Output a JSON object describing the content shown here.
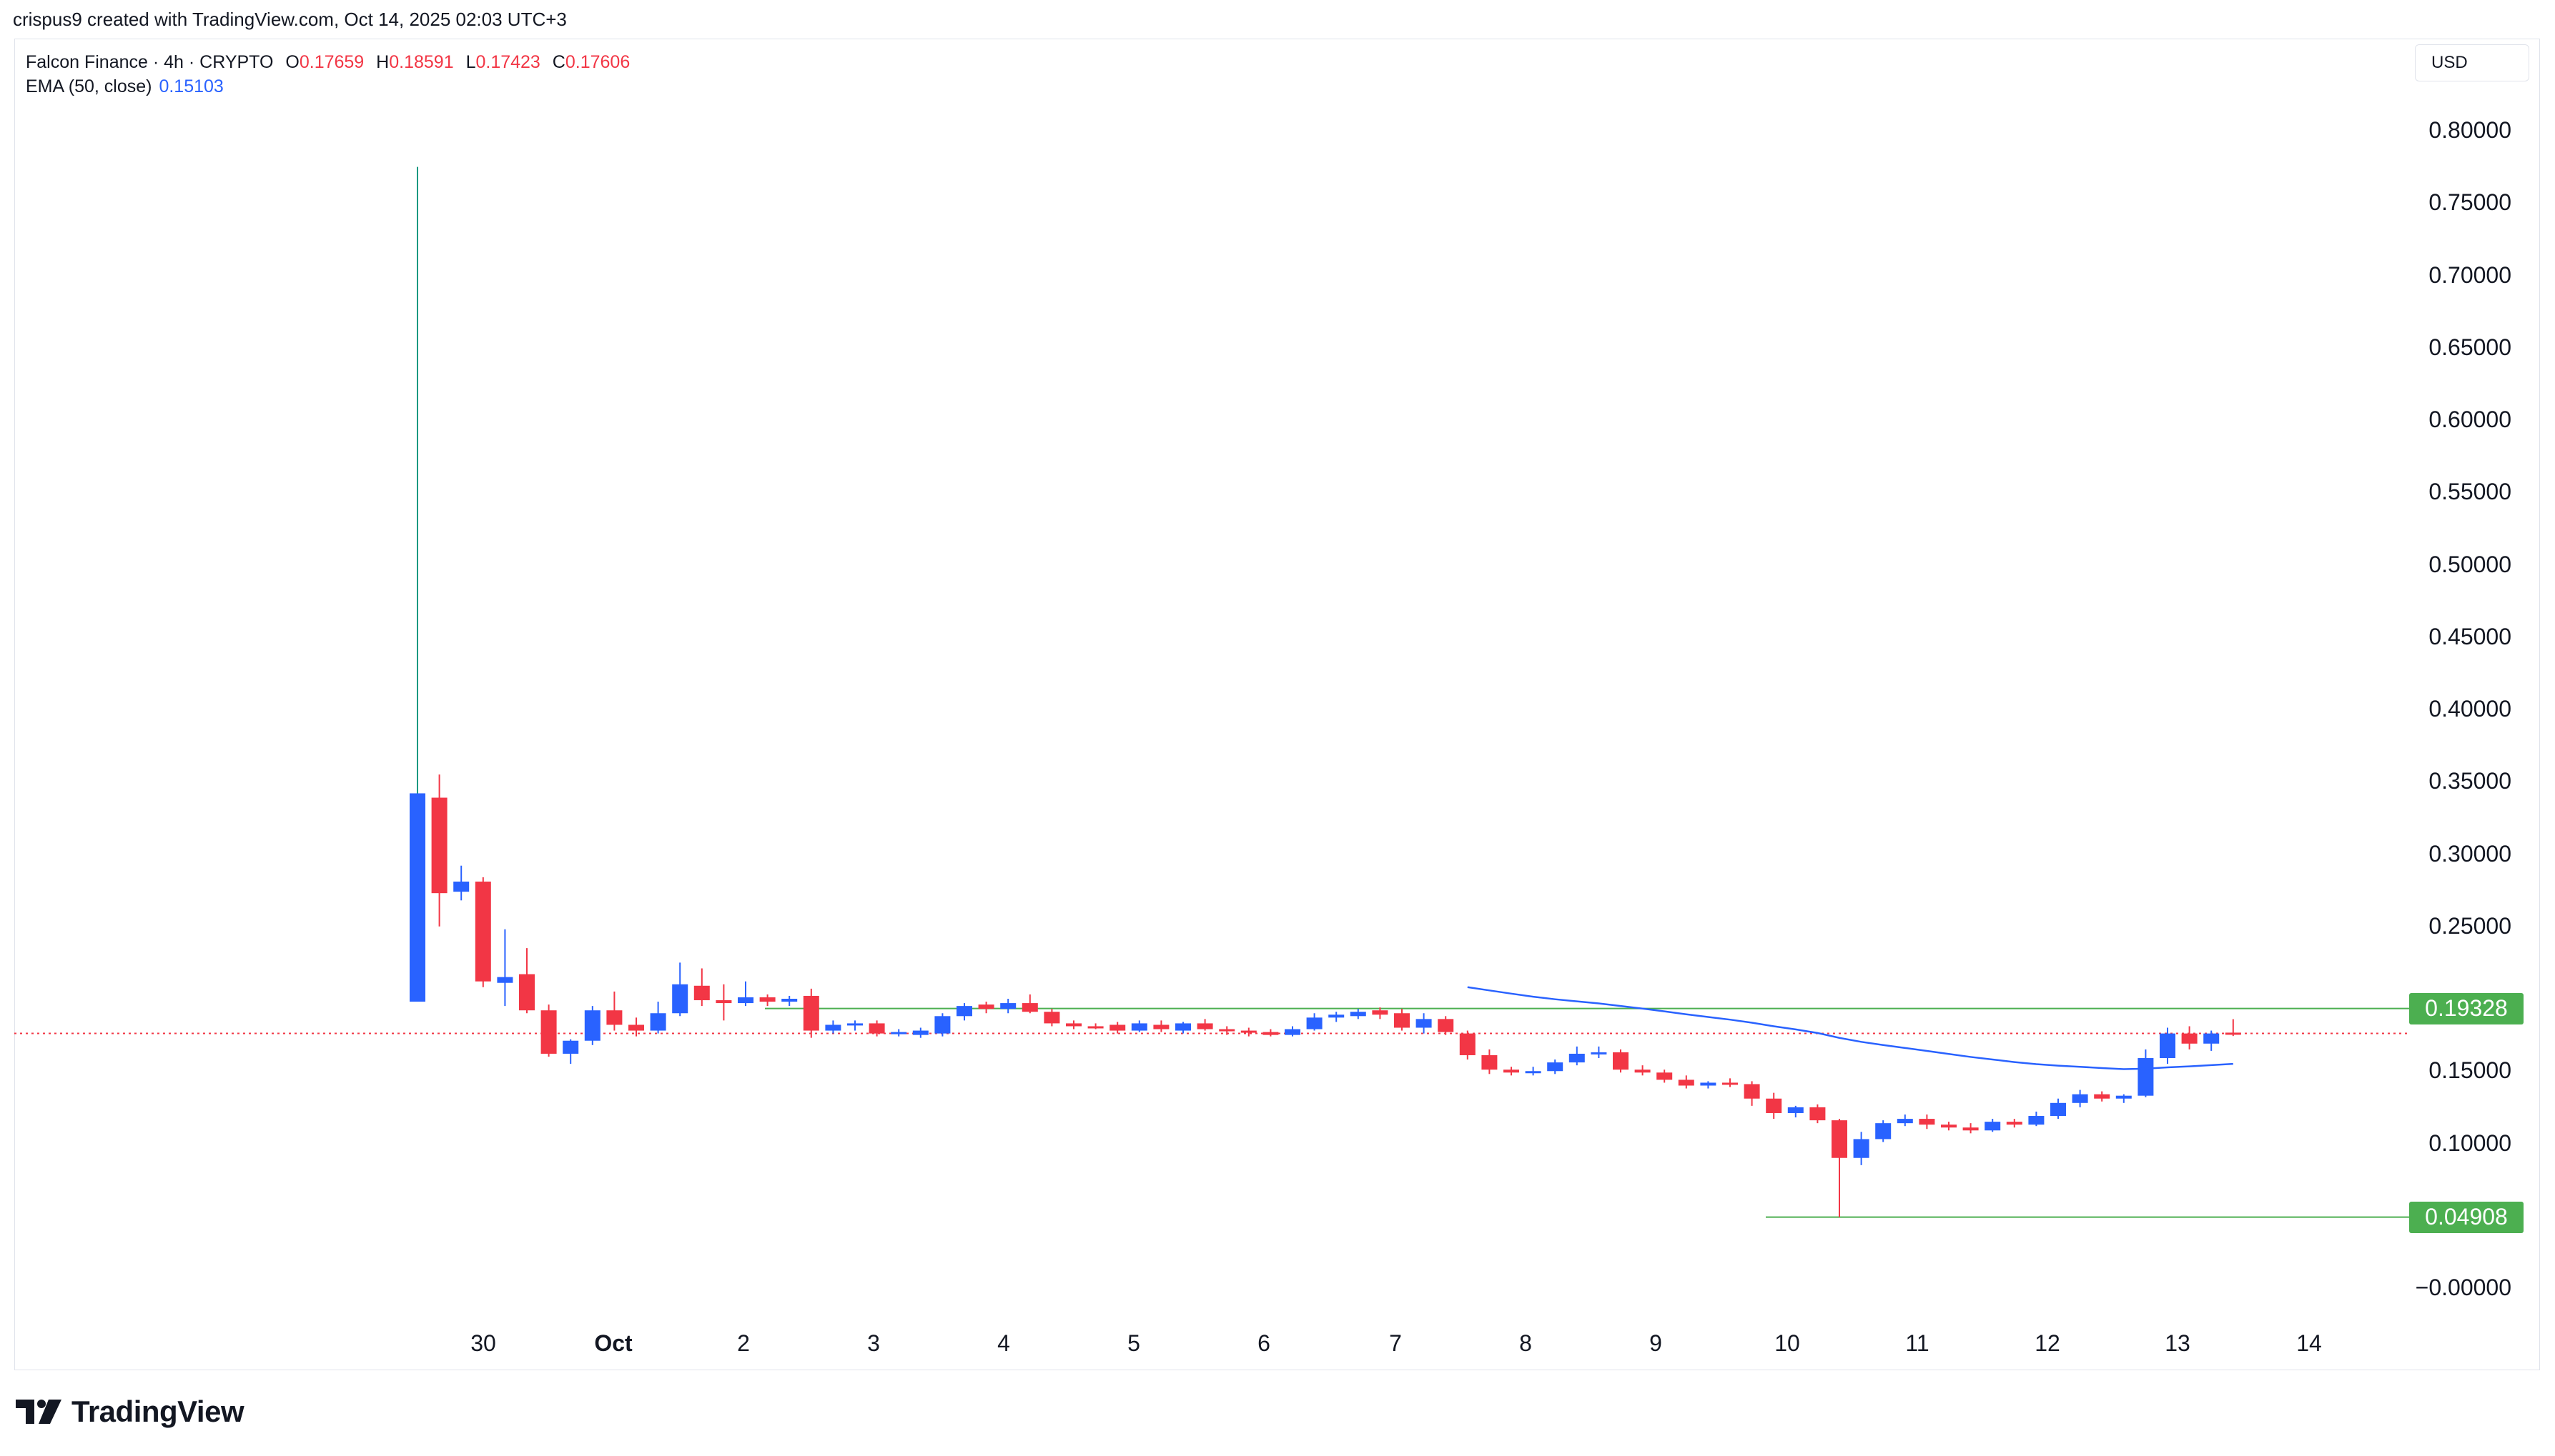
{
  "header": {
    "created_by": "crispus9 created with TradingView.com, Oct 14, 2025 02:03 UTC+3"
  },
  "legend": {
    "symbol": "Falcon Finance · 4h · CRYPTO",
    "open_label": "O",
    "open": "0.17659",
    "high_label": "H",
    "high": "0.18591",
    "low_label": "L",
    "low": "0.17423",
    "close_label": "C",
    "close": "0.17606",
    "ema_name": "EMA (50, close)",
    "ema_value": "0.15103"
  },
  "currency": "USD",
  "price_tags": {
    "upper": "0.19328",
    "lower": "0.04908"
  },
  "brand": {
    "name": "TradingView"
  },
  "colors": {
    "up": "#2962ff",
    "down": "#f23645",
    "ema": "#2962ff",
    "level_line": "#4caf50",
    "spike_wick": "#089981",
    "current_price": "#f23645"
  },
  "chart_data": {
    "type": "candlestick",
    "timeframe": "4h",
    "y_axis_ticks": [
      "0.80000",
      "0.75000",
      "0.70000",
      "0.65000",
      "0.60000",
      "0.55000",
      "0.50000",
      "0.45000",
      "0.40000",
      "0.35000",
      "0.30000",
      "0.25000",
      "0.15000",
      "0.10000",
      "−0.00000"
    ],
    "ylim": [
      0.0,
      0.8
    ],
    "x_axis_ticks": [
      "30",
      "Oct",
      "2",
      "3",
      "4",
      "5",
      "6",
      "7",
      "8",
      "9",
      "10",
      "11",
      "12",
      "13",
      "14"
    ],
    "horizontal_levels": [
      0.19328,
      0.04908
    ],
    "current_price": 0.17606,
    "candles": [
      {
        "o": 0.198,
        "h": 0.775,
        "l": 0.198,
        "c": 0.342
      },
      {
        "o": 0.339,
        "h": 0.355,
        "l": 0.25,
        "c": 0.273
      },
      {
        "o": 0.274,
        "h": 0.292,
        "l": 0.268,
        "c": 0.281
      },
      {
        "o": 0.281,
        "h": 0.284,
        "l": 0.208,
        "c": 0.212
      },
      {
        "o": 0.211,
        "h": 0.248,
        "l": 0.195,
        "c": 0.215
      },
      {
        "o": 0.217,
        "h": 0.235,
        "l": 0.19,
        "c": 0.192
      },
      {
        "o": 0.192,
        "h": 0.196,
        "l": 0.16,
        "c": 0.162
      },
      {
        "o": 0.162,
        "h": 0.172,
        "l": 0.155,
        "c": 0.171
      },
      {
        "o": 0.171,
        "h": 0.195,
        "l": 0.168,
        "c": 0.192
      },
      {
        "o": 0.192,
        "h": 0.205,
        "l": 0.178,
        "c": 0.182
      },
      {
        "o": 0.182,
        "h": 0.187,
        "l": 0.174,
        "c": 0.178
      },
      {
        "o": 0.178,
        "h": 0.198,
        "l": 0.176,
        "c": 0.19
      },
      {
        "o": 0.19,
        "h": 0.225,
        "l": 0.188,
        "c": 0.21
      },
      {
        "o": 0.209,
        "h": 0.221,
        "l": 0.195,
        "c": 0.199
      },
      {
        "o": 0.199,
        "h": 0.21,
        "l": 0.185,
        "c": 0.197
      },
      {
        "o": 0.197,
        "h": 0.212,
        "l": 0.195,
        "c": 0.201
      },
      {
        "o": 0.201,
        "h": 0.203,
        "l": 0.195,
        "c": 0.198
      },
      {
        "o": 0.198,
        "h": 0.202,
        "l": 0.195,
        "c": 0.2
      },
      {
        "o": 0.202,
        "h": 0.207,
        "l": 0.173,
        "c": 0.178
      },
      {
        "o": 0.178,
        "h": 0.185,
        "l": 0.176,
        "c": 0.182
      },
      {
        "o": 0.182,
        "h": 0.185,
        "l": 0.178,
        "c": 0.183
      },
      {
        "o": 0.183,
        "h": 0.185,
        "l": 0.174,
        "c": 0.176
      },
      {
        "o": 0.176,
        "h": 0.179,
        "l": 0.174,
        "c": 0.177
      },
      {
        "o": 0.175,
        "h": 0.18,
        "l": 0.173,
        "c": 0.178
      },
      {
        "o": 0.176,
        "h": 0.19,
        "l": 0.174,
        "c": 0.188
      },
      {
        "o": 0.188,
        "h": 0.197,
        "l": 0.185,
        "c": 0.195
      },
      {
        "o": 0.196,
        "h": 0.198,
        "l": 0.19,
        "c": 0.193
      },
      {
        "o": 0.193,
        "h": 0.2,
        "l": 0.19,
        "c": 0.197
      },
      {
        "o": 0.197,
        "h": 0.203,
        "l": 0.19,
        "c": 0.191
      },
      {
        "o": 0.191,
        "h": 0.193,
        "l": 0.181,
        "c": 0.183
      },
      {
        "o": 0.183,
        "h": 0.185,
        "l": 0.179,
        "c": 0.181
      },
      {
        "o": 0.181,
        "h": 0.183,
        "l": 0.179,
        "c": 0.18
      },
      {
        "o": 0.182,
        "h": 0.184,
        "l": 0.176,
        "c": 0.178
      },
      {
        "o": 0.178,
        "h": 0.185,
        "l": 0.177,
        "c": 0.183
      },
      {
        "o": 0.182,
        "h": 0.185,
        "l": 0.177,
        "c": 0.179
      },
      {
        "o": 0.178,
        "h": 0.184,
        "l": 0.176,
        "c": 0.183
      },
      {
        "o": 0.183,
        "h": 0.186,
        "l": 0.178,
        "c": 0.179
      },
      {
        "o": 0.179,
        "h": 0.181,
        "l": 0.175,
        "c": 0.178
      },
      {
        "o": 0.178,
        "h": 0.18,
        "l": 0.174,
        "c": 0.177
      },
      {
        "o": 0.177,
        "h": 0.179,
        "l": 0.174,
        "c": 0.175
      },
      {
        "o": 0.175,
        "h": 0.181,
        "l": 0.174,
        "c": 0.179
      },
      {
        "o": 0.179,
        "h": 0.19,
        "l": 0.178,
        "c": 0.187
      },
      {
        "o": 0.187,
        "h": 0.191,
        "l": 0.184,
        "c": 0.189
      },
      {
        "o": 0.188,
        "h": 0.193,
        "l": 0.186,
        "c": 0.191
      },
      {
        "o": 0.192,
        "h": 0.194,
        "l": 0.186,
        "c": 0.189
      },
      {
        "o": 0.19,
        "h": 0.193,
        "l": 0.178,
        "c": 0.18
      },
      {
        "o": 0.18,
        "h": 0.19,
        "l": 0.176,
        "c": 0.186
      },
      {
        "o": 0.186,
        "h": 0.188,
        "l": 0.175,
        "c": 0.177
      },
      {
        "o": 0.176,
        "h": 0.178,
        "l": 0.158,
        "c": 0.161
      },
      {
        "o": 0.161,
        "h": 0.165,
        "l": 0.148,
        "c": 0.151
      },
      {
        "o": 0.151,
        "h": 0.153,
        "l": 0.147,
        "c": 0.149
      },
      {
        "o": 0.149,
        "h": 0.153,
        "l": 0.147,
        "c": 0.15
      },
      {
        "o": 0.15,
        "h": 0.158,
        "l": 0.148,
        "c": 0.156
      },
      {
        "o": 0.156,
        "h": 0.167,
        "l": 0.154,
        "c": 0.162
      },
      {
        "o": 0.162,
        "h": 0.167,
        "l": 0.159,
        "c": 0.163
      },
      {
        "o": 0.163,
        "h": 0.165,
        "l": 0.149,
        "c": 0.151
      },
      {
        "o": 0.151,
        "h": 0.154,
        "l": 0.147,
        "c": 0.149
      },
      {
        "o": 0.149,
        "h": 0.151,
        "l": 0.142,
        "c": 0.144
      },
      {
        "o": 0.144,
        "h": 0.147,
        "l": 0.138,
        "c": 0.14
      },
      {
        "o": 0.14,
        "h": 0.143,
        "l": 0.138,
        "c": 0.142
      },
      {
        "o": 0.142,
        "h": 0.145,
        "l": 0.139,
        "c": 0.141
      },
      {
        "o": 0.141,
        "h": 0.143,
        "l": 0.126,
        "c": 0.131
      },
      {
        "o": 0.131,
        "h": 0.135,
        "l": 0.117,
        "c": 0.121
      },
      {
        "o": 0.121,
        "h": 0.126,
        "l": 0.118,
        "c": 0.125
      },
      {
        "o": 0.125,
        "h": 0.127,
        "l": 0.114,
        "c": 0.116
      },
      {
        "o": 0.116,
        "h": 0.117,
        "l": 0.049,
        "c": 0.09
      },
      {
        "o": 0.09,
        "h": 0.108,
        "l": 0.085,
        "c": 0.103
      },
      {
        "o": 0.103,
        "h": 0.116,
        "l": 0.101,
        "c": 0.114
      },
      {
        "o": 0.114,
        "h": 0.12,
        "l": 0.112,
        "c": 0.117
      },
      {
        "o": 0.117,
        "h": 0.12,
        "l": 0.11,
        "c": 0.113
      },
      {
        "o": 0.113,
        "h": 0.115,
        "l": 0.109,
        "c": 0.111
      },
      {
        "o": 0.111,
        "h": 0.114,
        "l": 0.107,
        "c": 0.109
      },
      {
        "o": 0.109,
        "h": 0.117,
        "l": 0.108,
        "c": 0.115
      },
      {
        "o": 0.115,
        "h": 0.117,
        "l": 0.111,
        "c": 0.113
      },
      {
        "o": 0.113,
        "h": 0.122,
        "l": 0.112,
        "c": 0.119
      },
      {
        "o": 0.119,
        "h": 0.131,
        "l": 0.117,
        "c": 0.128
      },
      {
        "o": 0.128,
        "h": 0.137,
        "l": 0.125,
        "c": 0.134
      },
      {
        "o": 0.134,
        "h": 0.136,
        "l": 0.129,
        "c": 0.131
      },
      {
        "o": 0.131,
        "h": 0.134,
        "l": 0.128,
        "c": 0.133
      },
      {
        "o": 0.133,
        "h": 0.165,
        "l": 0.132,
        "c": 0.159
      },
      {
        "o": 0.159,
        "h": 0.18,
        "l": 0.155,
        "c": 0.176
      },
      {
        "o": 0.176,
        "h": 0.181,
        "l": 0.165,
        "c": 0.169
      },
      {
        "o": 0.169,
        "h": 0.178,
        "l": 0.164,
        "c": 0.176
      },
      {
        "o": 0.17659,
        "h": 0.18591,
        "l": 0.17423,
        "c": 0.17606
      }
    ]
  }
}
